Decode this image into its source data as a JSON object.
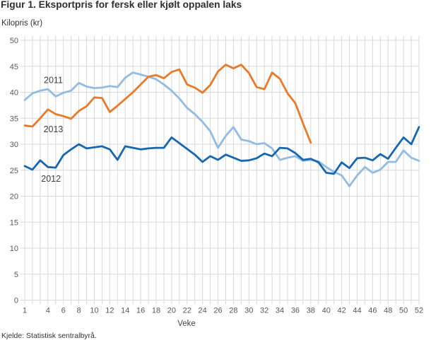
{
  "title": "Figur 1. Eksportpris for fersk eller kjølt oppalen laks",
  "y_unit": "Kilopris (kr)",
  "source": "Kjelde: Statistisk sentralbyrå.",
  "colors": {
    "series_2011": "#92bce2",
    "series_2012": "#1667b1",
    "series_2013": "#ea7a28",
    "gridline": "#d8d8d8",
    "tick_label": "#58585a",
    "annotation": "#3f3f3f"
  },
  "chart_data": {
    "type": "line",
    "title": "Figur 1. Eksportpris for fersk eller kjølt oppalen laks",
    "xlabel": "Veke",
    "ylabel": "Kilopris (kr)",
    "xlim": [
      1,
      52
    ],
    "ylim": [
      0,
      50
    ],
    "y_ticks": [
      0,
      5,
      10,
      15,
      20,
      25,
      30,
      35,
      40,
      45,
      50
    ],
    "x_ticks": [
      1,
      4,
      6,
      8,
      10,
      12,
      14,
      16,
      18,
      20,
      22,
      24,
      26,
      28,
      30,
      32,
      34,
      36,
      38,
      40,
      42,
      44,
      46,
      48,
      50,
      52
    ],
    "grid": true,
    "legend_position": "inline-annotations",
    "x": "week 1-52 (weekly data)",
    "series": [
      {
        "name": "2011",
        "color_key": "series_2011",
        "x_start": 1,
        "values": [
          38.5,
          39.8,
          40.3,
          40.6,
          39.2,
          39.9,
          40.3,
          41.8,
          41.1,
          40.8,
          40.9,
          41.2,
          41.0,
          42.8,
          43.8,
          43.4,
          43.0,
          42.5,
          41.5,
          40.3,
          38.8,
          37.0,
          35.8,
          34.3,
          32.5,
          29.3,
          31.6,
          33.3,
          30.9,
          30.6,
          30.0,
          30.2,
          29.2,
          27.0,
          27.4,
          27.7,
          26.8,
          27.0,
          26.7,
          25.6,
          24.7,
          24.0,
          21.9,
          24.0,
          25.6,
          24.5,
          25.1,
          26.6,
          26.6,
          28.8,
          27.4,
          26.8
        ]
      },
      {
        "name": "2012",
        "color_key": "series_2012",
        "x_start": 1,
        "values": [
          25.8,
          25.1,
          26.9,
          25.6,
          25.5,
          27.9,
          29.0,
          30.0,
          29.2,
          29.4,
          29.6,
          29.0,
          27.0,
          29.6,
          29.3,
          29.0,
          29.2,
          29.3,
          29.3,
          31.3,
          30.2,
          29.1,
          28.0,
          26.6,
          27.7,
          27.0,
          28.0,
          27.4,
          26.8,
          26.9,
          27.3,
          28.2,
          27.7,
          29.3,
          29.2,
          28.3,
          27.0,
          27.2,
          26.5,
          24.5,
          24.3,
          26.5,
          25.4,
          27.3,
          27.4,
          26.9,
          28.1,
          27.2,
          29.3,
          31.3,
          30.0,
          33.3
        ]
      },
      {
        "name": "2013",
        "color_key": "series_2013",
        "x_start": 1,
        "values": [
          33.6,
          33.4,
          35.0,
          36.7,
          35.8,
          35.4,
          34.9,
          36.4,
          37.3,
          39.0,
          38.9,
          36.2,
          37.4,
          38.7,
          40.0,
          41.5,
          43.0,
          43.3,
          42.7,
          43.9,
          44.4,
          41.5,
          40.9,
          39.9,
          41.4,
          44.0,
          45.3,
          44.6,
          45.3,
          43.7,
          41.0,
          40.6,
          43.8,
          42.6,
          39.8,
          37.9,
          34.0,
          30.3
        ]
      }
    ],
    "annotations": [
      {
        "label": "2011",
        "week": 4.7,
        "value": 41.8
      },
      {
        "label": "2013",
        "week": 4.7,
        "value": 32.3
      },
      {
        "label": "2012",
        "week": 4.4,
        "value": 22.8
      }
    ]
  }
}
